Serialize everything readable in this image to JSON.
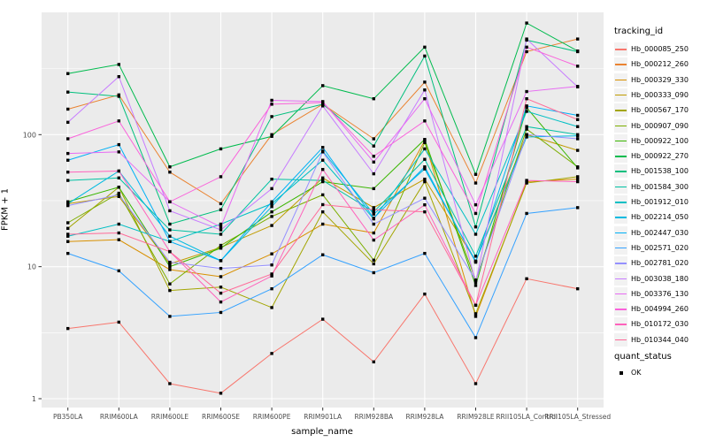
{
  "chart_data": {
    "type": "line",
    "title": "",
    "xlabel": "sample_name",
    "ylabel": "FPKM + 1",
    "x_categories": [
      "PB350LA",
      "RRIM600LA",
      "RRIM600LE",
      "RRIM600SE",
      "RRIM600PE",
      "RRIM901LA",
      "RRIM928BA",
      "RRIM928LA",
      "RRIM928LE",
      "RRII105LA_Control",
      "RRII105LA_Stressed"
    ],
    "y_scale": "log10",
    "y_ticks": [
      1,
      10,
      100
    ],
    "y_minor_ticks": [
      3.162,
      31.62,
      316.2
    ],
    "ylim": [
      0.87,
      830
    ],
    "grid": "major+minor",
    "panel_bg": "#EBEBEB",
    "grid_color": "#FFFFFF",
    "tick_label_color": "#4D4D4D",
    "point_shape": "filled-black-square",
    "legend_position": "right",
    "legend_titles": {
      "color": "tracking_id",
      "shape": "quant_status"
    },
    "quant_status_values": [
      "OK"
    ],
    "series": [
      {
        "name": "Hb_000085_250",
        "color": "#F8766D",
        "values": [
          3.4,
          3.8,
          1.3,
          1.1,
          2.2,
          4,
          1.9,
          6.2,
          1.3,
          8.1,
          6.8
        ]
      },
      {
        "name": "Hb_000212_260",
        "color": "#EA8331",
        "values": [
          156,
          200,
          52,
          30,
          100,
          170,
          93,
          250,
          43,
          425,
          530
        ]
      },
      {
        "name": "Hb_000329_330",
        "color": "#D89000",
        "values": [
          15.5,
          16,
          9.5,
          8.4,
          12.5,
          21,
          18,
          90,
          4.2,
          44,
          46
        ]
      },
      {
        "name": "Hb_000333_090",
        "color": "#C09B00",
        "values": [
          30,
          34,
          10.5,
          14,
          20.5,
          47,
          28,
          46,
          11,
          100,
          76
        ]
      },
      {
        "name": "Hb_000567_170",
        "color": "#A3A500",
        "values": [
          19.5,
          40,
          6.6,
          7,
          4.9,
          26,
          10.5,
          44,
          4.4,
          43,
          48
        ]
      },
      {
        "name": "Hb_000907_090",
        "color": "#7CAE00",
        "values": [
          21.5,
          36,
          7.4,
          14.5,
          24,
          35,
          11.2,
          87,
          7.9,
          110,
          57
        ]
      },
      {
        "name": "Hb_000922_100",
        "color": "#39B600",
        "values": [
          31,
          40,
          10,
          13.8,
          26,
          44,
          39,
          92,
          7.2,
          160,
          56
        ]
      },
      {
        "name": "Hb_000922_270",
        "color": "#00BB4E",
        "values": [
          290,
          340,
          57,
          78,
          97,
          235,
          187,
          460,
          50,
          700,
          430
        ]
      },
      {
        "name": "Hb_001538_100",
        "color": "#00BF7D",
        "values": [
          210,
          195,
          21,
          27,
          137,
          170,
          82,
          394,
          20,
          520,
          425
        ]
      },
      {
        "name": "Hb_001584_300",
        "color": "#00C1A3",
        "values": [
          45,
          47,
          19,
          17.6,
          46,
          45,
          26,
          65,
          12,
          115,
          100
        ]
      },
      {
        "name": "Hb_001912_010",
        "color": "#00BFC4",
        "values": [
          17,
          21,
          15.5,
          21,
          30,
          64,
          23,
          78,
          17.6,
          150,
          115
        ]
      },
      {
        "name": "Hb_002214_050",
        "color": "#00BAE0",
        "values": [
          30,
          53,
          17,
          11.1,
          28.5,
          75,
          25,
          55,
          11,
          96,
          98
        ]
      },
      {
        "name": "Hb_002447_030",
        "color": "#00B0F6",
        "values": [
          64,
          84,
          15.5,
          11.1,
          31,
          80,
          23.3,
          57,
          10.8,
          165,
          140
        ]
      },
      {
        "name": "Hb_002571_020",
        "color": "#35A2FF",
        "values": [
          12.6,
          9.3,
          4.2,
          4.5,
          6.8,
          12.3,
          9,
          12.6,
          2.9,
          25.3,
          28
        ]
      },
      {
        "name": "Hb_002781_020",
        "color": "#9590FF",
        "values": [
          29,
          35,
          10.8,
          9.7,
          10.3,
          74,
          21,
          33,
          7.9,
          100,
          93
        ]
      },
      {
        "name": "Hb_003038_180",
        "color": "#C77CFF",
        "values": [
          124,
          275,
          26.5,
          19,
          39,
          165,
          50.5,
          218,
          7.6,
          530,
          230
        ]
      },
      {
        "name": "Hb_003376_130",
        "color": "#E76BF3",
        "values": [
          72,
          74,
          31,
          20,
          182,
          178,
          62,
          187,
          29.4,
          212,
          232
        ]
      },
      {
        "name": "Hb_004994_260",
        "color": "#FA62DB",
        "values": [
          93,
          127,
          31,
          48,
          170,
          175,
          68.6,
          127,
          25.3,
          460,
          330
        ]
      },
      {
        "name": "Hb_010172_030",
        "color": "#FF62BC",
        "values": [
          52,
          53,
          13,
          5.4,
          8.5,
          54.5,
          15.9,
          29.4,
          5.1,
          45,
          44
        ]
      },
      {
        "name": "Hb_010344_040",
        "color": "#FF6A98",
        "values": [
          17.6,
          18,
          13,
          6.3,
          8.8,
          29.5,
          27,
          26,
          5.1,
          187,
          130
        ]
      }
    ]
  }
}
